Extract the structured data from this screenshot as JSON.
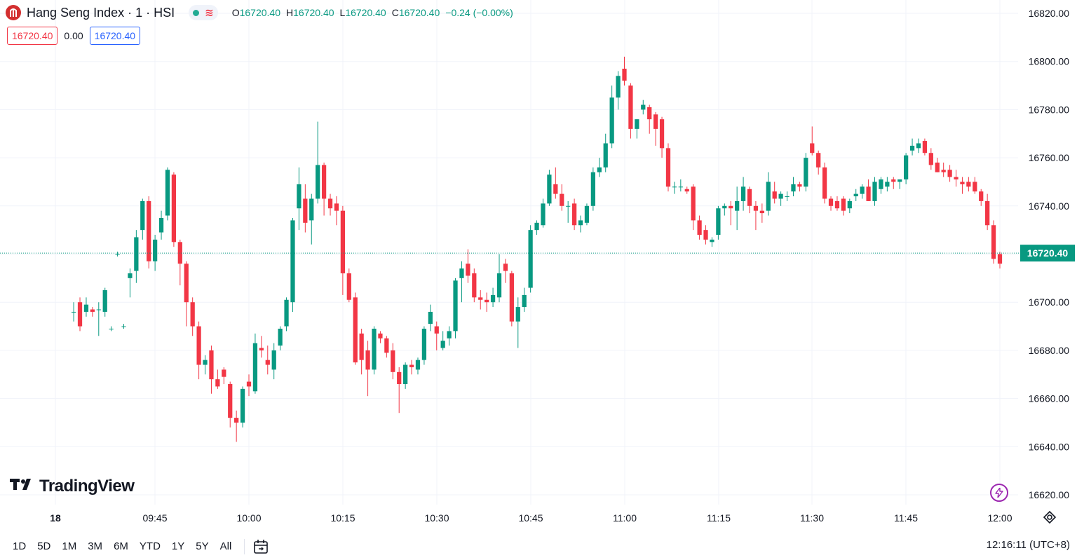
{
  "header": {
    "symbol_title": "Hang Seng Index · 1 · HSI",
    "ohlc": [
      {
        "key": "O",
        "value": "16720.40"
      },
      {
        "key": "H",
        "value": "16720.40"
      },
      {
        "key": "L",
        "value": "16720.40"
      },
      {
        "key": "C",
        "value": "16720.40"
      }
    ],
    "change": "−0.24 (−0.00%)",
    "bid": "16720.40",
    "spread": "0.00",
    "ask": "16720.40"
  },
  "branding": {
    "logo_text": "TradingView"
  },
  "bottom_bar": {
    "ranges": [
      "1D",
      "5D",
      "1M",
      "3M",
      "6M",
      "YTD",
      "1Y",
      "5Y",
      "All"
    ],
    "clock": "12:16:11 (UTC+8)"
  },
  "colors": {
    "up": "#089981",
    "down": "#f23645",
    "grid": "#f0f3fa",
    "last_price_label_bg": "#089981"
  },
  "chart_data": {
    "type": "candlestick",
    "interval_minutes": 1,
    "x_axis": {
      "tick_labels": [
        "18",
        "09:45",
        "10:00",
        "10:15",
        "10:30",
        "10:45",
        "11:00",
        "11:15",
        "11:30",
        "11:45",
        "12:00"
      ],
      "range": [
        "09:32",
        "12:00"
      ]
    },
    "y_axis": {
      "tick_labels": [
        "16820.00",
        "16800.00",
        "16780.00",
        "16760.00",
        "16740.00",
        "16720.00",
        "16700.00",
        "16680.00",
        "16660.00",
        "16640.00",
        "16620.00"
      ],
      "range": [
        16618,
        16822
      ],
      "position": "right"
    },
    "last_price": 16720.4,
    "last_price_label": "16720.40",
    "grid": true,
    "candles": [
      {
        "t": "09:32",
        "o": 16696,
        "h": 16700,
        "l": 16692,
        "c": 16696
      },
      {
        "t": "09:33",
        "o": 16700,
        "h": 16702,
        "l": 16688,
        "c": 16690
      },
      {
        "t": "09:34",
        "o": 16696,
        "h": 16702,
        "l": 16694,
        "c": 16699
      },
      {
        "t": "09:35",
        "o": 16697,
        "h": 16698,
        "l": 16694,
        "c": 16696
      },
      {
        "t": "09:36",
        "o": 16697,
        "h": 16700,
        "l": 16686,
        "c": 16697
      },
      {
        "t": "09:37",
        "o": 16696,
        "h": 16706,
        "l": 16694,
        "c": 16705
      },
      {
        "t": "09:38",
        "o": 16689,
        "h": 16690,
        "l": 16688,
        "c": 16689
      },
      {
        "t": "09:39",
        "o": 16720,
        "h": 16721,
        "l": 16719,
        "c": 16720
      },
      {
        "t": "09:40",
        "o": 16690,
        "h": 16691,
        "l": 16689,
        "c": 16690
      },
      {
        "t": "09:41",
        "o": 16710,
        "h": 16714,
        "l": 16702,
        "c": 16712
      },
      {
        "t": "09:42",
        "o": 16713,
        "h": 16730,
        "l": 16708,
        "c": 16727
      },
      {
        "t": "09:43",
        "o": 16730,
        "h": 16743,
        "l": 16726,
        "c": 16742
      },
      {
        "t": "09:44",
        "o": 16742,
        "h": 16744,
        "l": 16714,
        "c": 16717
      },
      {
        "t": "09:45",
        "o": 16717,
        "h": 16728,
        "l": 16713,
        "c": 16726
      },
      {
        "t": "09:46",
        "o": 16729,
        "h": 16738,
        "l": 16726,
        "c": 16735
      },
      {
        "t": "09:47",
        "o": 16736,
        "h": 16756,
        "l": 16734,
        "c": 16755
      },
      {
        "t": "09:48",
        "o": 16753,
        "h": 16754,
        "l": 16723,
        "c": 16725
      },
      {
        "t": "09:49",
        "o": 16725,
        "h": 16726,
        "l": 16707,
        "c": 16716
      },
      {
        "t": "09:50",
        "o": 16716,
        "h": 16717,
        "l": 16690,
        "c": 16700
      },
      {
        "t": "09:51",
        "o": 16700,
        "h": 16702,
        "l": 16686,
        "c": 16690
      },
      {
        "t": "09:52",
        "o": 16690,
        "h": 16692,
        "l": 16668,
        "c": 16674
      },
      {
        "t": "09:53",
        "o": 16674,
        "h": 16678,
        "l": 16670,
        "c": 16676
      },
      {
        "t": "09:54",
        "o": 16680,
        "h": 16682,
        "l": 16662,
        "c": 16668
      },
      {
        "t": "09:55",
        "o": 16668,
        "h": 16672,
        "l": 16664,
        "c": 16665
      },
      {
        "t": "09:56",
        "o": 16672,
        "h": 16673,
        "l": 16666,
        "c": 16669
      },
      {
        "t": "09:57",
        "o": 16666,
        "h": 16667,
        "l": 16648,
        "c": 16652
      },
      {
        "t": "09:58",
        "o": 16652,
        "h": 16655,
        "l": 16642,
        "c": 16650
      },
      {
        "t": "09:59",
        "o": 16650,
        "h": 16665,
        "l": 16648,
        "c": 16664
      },
      {
        "t": "10:00",
        "o": 16667,
        "h": 16670,
        "l": 16661,
        "c": 16665
      },
      {
        "t": "10:01",
        "o": 16663,
        "h": 16687,
        "l": 16662,
        "c": 16683
      },
      {
        "t": "10:02",
        "o": 16681,
        "h": 16686,
        "l": 16677,
        "c": 16680
      },
      {
        "t": "10:03",
        "o": 16676,
        "h": 16682,
        "l": 16670,
        "c": 16674
      },
      {
        "t": "10:04",
        "o": 16672,
        "h": 16683,
        "l": 16668,
        "c": 16680
      },
      {
        "t": "10:05",
        "o": 16682,
        "h": 16690,
        "l": 16680,
        "c": 16689
      },
      {
        "t": "10:06",
        "o": 16690,
        "h": 16702,
        "l": 16688,
        "c": 16701
      },
      {
        "t": "10:07",
        "o": 16700,
        "h": 16735,
        "l": 16696,
        "c": 16734
      },
      {
        "t": "10:08",
        "o": 16739,
        "h": 16756,
        "l": 16730,
        "c": 16749
      },
      {
        "t": "10:09",
        "o": 16743,
        "h": 16749,
        "l": 16729,
        "c": 16733
      },
      {
        "t": "10:10",
        "o": 16734,
        "h": 16745,
        "l": 16724,
        "c": 16743
      },
      {
        "t": "10:11",
        "o": 16743,
        "h": 16775,
        "l": 16741,
        "c": 16757
      },
      {
        "t": "10:12",
        "o": 16757,
        "h": 16758,
        "l": 16736,
        "c": 16743
      },
      {
        "t": "10:13",
        "o": 16743,
        "h": 16745,
        "l": 16736,
        "c": 16739
      },
      {
        "t": "10:14",
        "o": 16741,
        "h": 16744,
        "l": 16732,
        "c": 16738
      },
      {
        "t": "10:15",
        "o": 16738,
        "h": 16740,
        "l": 16703,
        "c": 16712
      },
      {
        "t": "10:16",
        "o": 16712,
        "h": 16714,
        "l": 16700,
        "c": 16701
      },
      {
        "t": "10:17",
        "o": 16702,
        "h": 16704,
        "l": 16674,
        "c": 16675
      },
      {
        "t": "10:18",
        "o": 16687,
        "h": 16689,
        "l": 16670,
        "c": 16676
      },
      {
        "t": "10:19",
        "o": 16680,
        "h": 16684,
        "l": 16661,
        "c": 16672
      },
      {
        "t": "10:20",
        "o": 16672,
        "h": 16690,
        "l": 16670,
        "c": 16689
      },
      {
        "t": "10:21",
        "o": 16687,
        "h": 16688,
        "l": 16683,
        "c": 16685
      },
      {
        "t": "10:22",
        "o": 16685,
        "h": 16686,
        "l": 16677,
        "c": 16679
      },
      {
        "t": "10:23",
        "o": 16680,
        "h": 16683,
        "l": 16668,
        "c": 16671
      },
      {
        "t": "10:24",
        "o": 16671,
        "h": 16673,
        "l": 16654,
        "c": 16666
      },
      {
        "t": "10:25",
        "o": 16666,
        "h": 16675,
        "l": 16664,
        "c": 16674
      },
      {
        "t": "10:26",
        "o": 16674,
        "h": 16676,
        "l": 16670,
        "c": 16673
      },
      {
        "t": "10:27",
        "o": 16672,
        "h": 16677,
        "l": 16670,
        "c": 16676
      },
      {
        "t": "10:28",
        "o": 16676,
        "h": 16690,
        "l": 16674,
        "c": 16689
      },
      {
        "t": "10:29",
        "o": 16691,
        "h": 16699,
        "l": 16688,
        "c": 16696
      },
      {
        "t": "10:30",
        "o": 16690,
        "h": 16692,
        "l": 16680,
        "c": 16687
      },
      {
        "t": "10:31",
        "o": 16681,
        "h": 16688,
        "l": 16680,
        "c": 16684
      },
      {
        "t": "10:32",
        "o": 16685,
        "h": 16690,
        "l": 16682,
        "c": 16688
      },
      {
        "t": "10:33",
        "o": 16688,
        "h": 16710,
        "l": 16685,
        "c": 16709
      },
      {
        "t": "10:34",
        "o": 16710,
        "h": 16717,
        "l": 16700,
        "c": 16714
      },
      {
        "t": "10:35",
        "o": 16716,
        "h": 16722,
        "l": 16708,
        "c": 16711
      },
      {
        "t": "10:36",
        "o": 16712,
        "h": 16714,
        "l": 16700,
        "c": 16702
      },
      {
        "t": "10:37",
        "o": 16702,
        "h": 16705,
        "l": 16697,
        "c": 16701
      },
      {
        "t": "10:38",
        "o": 16701,
        "h": 16704,
        "l": 16696,
        "c": 16700
      },
      {
        "t": "10:39",
        "o": 16700,
        "h": 16706,
        "l": 16698,
        "c": 16703
      },
      {
        "t": "10:40",
        "o": 16702,
        "h": 16720,
        "l": 16700,
        "c": 16712
      },
      {
        "t": "10:41",
        "o": 16716,
        "h": 16718,
        "l": 16708,
        "c": 16713
      },
      {
        "t": "10:42",
        "o": 16712,
        "h": 16713,
        "l": 16690,
        "c": 16692
      },
      {
        "t": "10:43",
        "o": 16692,
        "h": 16702,
        "l": 16681,
        "c": 16698
      },
      {
        "t": "10:44",
        "o": 16698,
        "h": 16706,
        "l": 16696,
        "c": 16703
      },
      {
        "t": "10:45",
        "o": 16706,
        "h": 16732,
        "l": 16704,
        "c": 16730
      },
      {
        "t": "10:46",
        "o": 16730,
        "h": 16734,
        "l": 16728,
        "c": 16733
      },
      {
        "t": "10:47",
        "o": 16732,
        "h": 16743,
        "l": 16731,
        "c": 16741
      },
      {
        "t": "10:48",
        "o": 16741,
        "h": 16755,
        "l": 16740,
        "c": 16753
      },
      {
        "t": "10:49",
        "o": 16749,
        "h": 16756,
        "l": 16743,
        "c": 16745
      },
      {
        "t": "10:50",
        "o": 16745,
        "h": 16749,
        "l": 16738,
        "c": 16740
      },
      {
        "t": "10:51",
        "o": 16740,
        "h": 16742,
        "l": 16733,
        "c": 16740
      },
      {
        "t": "10:52",
        "o": 16741,
        "h": 16743,
        "l": 16730,
        "c": 16732
      },
      {
        "t": "10:53",
        "o": 16732,
        "h": 16736,
        "l": 16729,
        "c": 16734
      },
      {
        "t": "10:54",
        "o": 16733,
        "h": 16741,
        "l": 16732,
        "c": 16740
      },
      {
        "t": "10:55",
        "o": 16740,
        "h": 16756,
        "l": 16738,
        "c": 16754
      },
      {
        "t": "10:56",
        "o": 16754,
        "h": 16760,
        "l": 16752,
        "c": 16756
      },
      {
        "t": "10:57",
        "o": 16756,
        "h": 16770,
        "l": 16754,
        "c": 16766
      },
      {
        "t": "10:58",
        "o": 16766,
        "h": 16790,
        "l": 16764,
        "c": 16785
      },
      {
        "t": "10:59",
        "o": 16785,
        "h": 16796,
        "l": 16780,
        "c": 16794
      },
      {
        "t": "11:00",
        "o": 16797,
        "h": 16802,
        "l": 16790,
        "c": 16792
      },
      {
        "t": "11:01",
        "o": 16790,
        "h": 16791,
        "l": 16768,
        "c": 16772
      },
      {
        "t": "11:02",
        "o": 16772,
        "h": 16776,
        "l": 16768,
        "c": 16776
      },
      {
        "t": "11:03",
        "o": 16780,
        "h": 16784,
        "l": 16778,
        "c": 16782
      },
      {
        "t": "11:04",
        "o": 16781,
        "h": 16782,
        "l": 16770,
        "c": 16776
      },
      {
        "t": "11:05",
        "o": 16778,
        "h": 16779,
        "l": 16765,
        "c": 16772
      },
      {
        "t": "11:06",
        "o": 16776,
        "h": 16777,
        "l": 16760,
        "c": 16764
      },
      {
        "t": "11:07",
        "o": 16764,
        "h": 16766,
        "l": 16746,
        "c": 16748
      },
      {
        "t": "11:08",
        "o": 16748,
        "h": 16750,
        "l": 16745,
        "c": 16748
      },
      {
        "t": "11:09",
        "o": 16748,
        "h": 16751,
        "l": 16746,
        "c": 16748
      },
      {
        "t": "11:10",
        "o": 16747,
        "h": 16748,
        "l": 16745,
        "c": 16746
      },
      {
        "t": "11:11",
        "o": 16748,
        "h": 16749,
        "l": 16730,
        "c": 16734
      },
      {
        "t": "11:12",
        "o": 16734,
        "h": 16736,
        "l": 16726,
        "c": 16728
      },
      {
        "t": "11:13",
        "o": 16730,
        "h": 16732,
        "l": 16724,
        "c": 16726
      },
      {
        "t": "11:14",
        "o": 16725,
        "h": 16727,
        "l": 16723,
        "c": 16726
      },
      {
        "t": "11:15",
        "o": 16728,
        "h": 16740,
        "l": 16726,
        "c": 16739
      },
      {
        "t": "11:16",
        "o": 16739,
        "h": 16741,
        "l": 16736,
        "c": 16740
      },
      {
        "t": "11:17",
        "o": 16740,
        "h": 16742,
        "l": 16732,
        "c": 16739
      },
      {
        "t": "11:18",
        "o": 16738,
        "h": 16748,
        "l": 16730,
        "c": 16742
      },
      {
        "t": "11:19",
        "o": 16742,
        "h": 16752,
        "l": 16738,
        "c": 16748
      },
      {
        "t": "11:20",
        "o": 16747,
        "h": 16748,
        "l": 16737,
        "c": 16740
      },
      {
        "t": "11:21",
        "o": 16740,
        "h": 16742,
        "l": 16730,
        "c": 16738
      },
      {
        "t": "11:22",
        "o": 16738,
        "h": 16741,
        "l": 16733,
        "c": 16737
      },
      {
        "t": "11:23",
        "o": 16738,
        "h": 16754,
        "l": 16736,
        "c": 16750
      },
      {
        "t": "11:24",
        "o": 16746,
        "h": 16750,
        "l": 16741,
        "c": 16743
      },
      {
        "t": "11:25",
        "o": 16743,
        "h": 16746,
        "l": 16740,
        "c": 16745
      },
      {
        "t": "11:26",
        "o": 16744,
        "h": 16746,
        "l": 16742,
        "c": 16744
      },
      {
        "t": "11:27",
        "o": 16746,
        "h": 16752,
        "l": 16744,
        "c": 16749
      },
      {
        "t": "11:28",
        "o": 16749,
        "h": 16750,
        "l": 16746,
        "c": 16748
      },
      {
        "t": "11:29",
        "o": 16748,
        "h": 16762,
        "l": 16746,
        "c": 16760
      },
      {
        "t": "11:30",
        "o": 16766,
        "h": 16773,
        "l": 16761,
        "c": 16762
      },
      {
        "t": "11:31",
        "o": 16762,
        "h": 16763,
        "l": 16753,
        "c": 16756
      },
      {
        "t": "11:32",
        "o": 16756,
        "h": 16758,
        "l": 16741,
        "c": 16743
      },
      {
        "t": "11:33",
        "o": 16743,
        "h": 16744,
        "l": 16738,
        "c": 16740
      },
      {
        "t": "11:34",
        "o": 16742,
        "h": 16744,
        "l": 16738,
        "c": 16739
      },
      {
        "t": "11:35",
        "o": 16743,
        "h": 16744,
        "l": 16736,
        "c": 16738
      },
      {
        "t": "11:36",
        "o": 16739,
        "h": 16743,
        "l": 16737,
        "c": 16742
      },
      {
        "t": "11:37",
        "o": 16744,
        "h": 16747,
        "l": 16742,
        "c": 16745
      },
      {
        "t": "11:38",
        "o": 16745,
        "h": 16749,
        "l": 16743,
        "c": 16748
      },
      {
        "t": "11:39",
        "o": 16748,
        "h": 16751,
        "l": 16742,
        "c": 16742
      },
      {
        "t": "11:40",
        "o": 16742,
        "h": 16752,
        "l": 16740,
        "c": 16750
      },
      {
        "t": "11:41",
        "o": 16747,
        "h": 16752,
        "l": 16745,
        "c": 16751
      },
      {
        "t": "11:42",
        "o": 16748,
        "h": 16752,
        "l": 16746,
        "c": 16750
      },
      {
        "t": "11:43",
        "o": 16751,
        "h": 16752,
        "l": 16747,
        "c": 16750
      },
      {
        "t": "11:44",
        "o": 16750,
        "h": 16751,
        "l": 16747,
        "c": 16751
      },
      {
        "t": "11:45",
        "o": 16751,
        "h": 16762,
        "l": 16749,
        "c": 16761
      },
      {
        "t": "11:46",
        "o": 16763,
        "h": 16768,
        "l": 16761,
        "c": 16765
      },
      {
        "t": "11:47",
        "o": 16764,
        "h": 16768,
        "l": 16762,
        "c": 16766
      },
      {
        "t": "11:48",
        "o": 16767,
        "h": 16768,
        "l": 16761,
        "c": 16762
      },
      {
        "t": "11:49",
        "o": 16762,
        "h": 16764,
        "l": 16755,
        "c": 16757
      },
      {
        "t": "11:50",
        "o": 16758,
        "h": 16760,
        "l": 16754,
        "c": 16754
      },
      {
        "t": "11:51",
        "o": 16755,
        "h": 16758,
        "l": 16752,
        "c": 16754
      },
      {
        "t": "11:52",
        "o": 16755,
        "h": 16757,
        "l": 16750,
        "c": 16752
      },
      {
        "t": "11:53",
        "o": 16752,
        "h": 16755,
        "l": 16748,
        "c": 16751
      },
      {
        "t": "11:54",
        "o": 16750,
        "h": 16752,
        "l": 16745,
        "c": 16749
      },
      {
        "t": "11:55",
        "o": 16750,
        "h": 16752,
        "l": 16746,
        "c": 16748
      },
      {
        "t": "11:56",
        "o": 16750,
        "h": 16752,
        "l": 16745,
        "c": 16746
      },
      {
        "t": "11:57",
        "o": 16746,
        "h": 16747,
        "l": 16740,
        "c": 16742
      },
      {
        "t": "11:58",
        "o": 16742,
        "h": 16745,
        "l": 16730,
        "c": 16732
      },
      {
        "t": "11:59",
        "o": 16732,
        "h": 16734,
        "l": 16716,
        "c": 16718
      },
      {
        "t": "12:00",
        "o": 16720,
        "h": 16721,
        "l": 16714,
        "c": 16716
      }
    ]
  }
}
